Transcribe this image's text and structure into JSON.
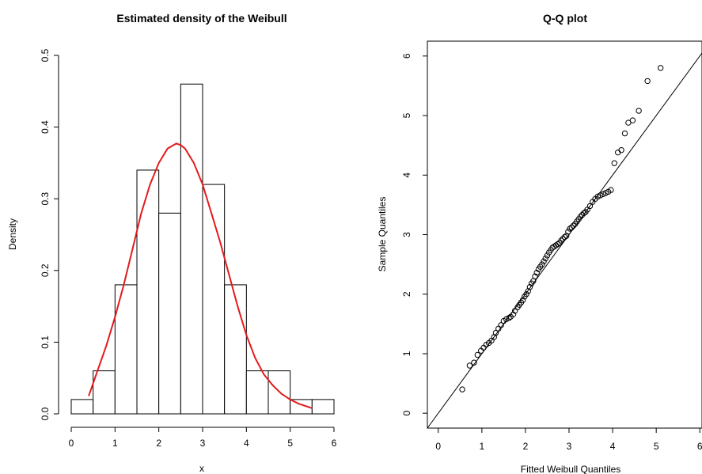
{
  "chart_data": [
    {
      "type": "bar",
      "title": "Estimated density of the Weibull",
      "xlabel": "x",
      "ylabel": "Density",
      "xlim": [
        0,
        6
      ],
      "ylim": [
        0,
        0.5
      ],
      "x_ticks": [
        "0",
        "1",
        "2",
        "3",
        "4",
        "5",
        "6"
      ],
      "y_ticks": [
        "0.0",
        "0.1",
        "0.2",
        "0.3",
        "0.4",
        "0.5"
      ],
      "bars": [
        {
          "x0": 0.0,
          "x1": 0.5,
          "density": 0.02
        },
        {
          "x0": 0.5,
          "x1": 1.0,
          "density": 0.06
        },
        {
          "x0": 1.0,
          "x1": 1.5,
          "density": 0.18
        },
        {
          "x0": 1.5,
          "x1": 2.0,
          "density": 0.34
        },
        {
          "x0": 2.0,
          "x1": 2.5,
          "density": 0.28
        },
        {
          "x0": 2.5,
          "x1": 3.0,
          "density": 0.46
        },
        {
          "x0": 3.0,
          "x1": 3.5,
          "density": 0.32
        },
        {
          "x0": 3.5,
          "x1": 4.0,
          "density": 0.18
        },
        {
          "x0": 4.0,
          "x1": 4.5,
          "density": 0.06
        },
        {
          "x0": 4.5,
          "x1": 5.0,
          "density": 0.06
        },
        {
          "x0": 5.0,
          "x1": 5.5,
          "density": 0.02
        },
        {
          "x0": 5.5,
          "x1": 6.0,
          "density": 0.02
        }
      ],
      "density_curve": {
        "color": "#e41a1c",
        "x": [
          0.4,
          0.6,
          0.8,
          1.0,
          1.2,
          1.4,
          1.6,
          1.8,
          2.0,
          2.2,
          2.4,
          2.5,
          2.6,
          2.8,
          3.0,
          3.2,
          3.4,
          3.6,
          3.8,
          4.0,
          4.2,
          4.4,
          4.6,
          4.8,
          5.0,
          5.2,
          5.5
        ],
        "y": [
          0.025,
          0.06,
          0.095,
          0.135,
          0.18,
          0.23,
          0.28,
          0.32,
          0.35,
          0.37,
          0.377,
          0.375,
          0.37,
          0.35,
          0.32,
          0.28,
          0.24,
          0.195,
          0.15,
          0.11,
          0.078,
          0.055,
          0.04,
          0.028,
          0.02,
          0.014,
          0.008
        ]
      },
      "bar_fill": "#ffffff",
      "bar_stroke": "#000000"
    },
    {
      "type": "scatter",
      "title": "Q-Q plot",
      "xlabel": "Fitted Weibull Quantiles",
      "ylabel": "Sample Quantiles",
      "xlim": [
        -0.25,
        6.05
      ],
      "ylim": [
        -0.25,
        6.25
      ],
      "x_ticks": [
        "0",
        "1",
        "2",
        "3",
        "4",
        "5",
        "6"
      ],
      "y_ticks": [
        "0",
        "1",
        "2",
        "3",
        "4",
        "5",
        "6"
      ],
      "reference_line": {
        "slope": 1,
        "intercept": 0
      },
      "points": {
        "x": [
          0.55,
          0.72,
          0.82,
          0.9,
          0.98,
          1.04,
          1.1,
          1.16,
          1.22,
          1.28,
          1.32,
          1.38,
          1.44,
          1.5,
          1.56,
          1.62,
          1.66,
          1.72,
          1.76,
          1.82,
          1.86,
          1.9,
          1.94,
          1.98,
          2.02,
          2.06,
          2.1,
          2.14,
          2.18,
          2.22,
          2.26,
          2.3,
          2.34,
          2.38,
          2.42,
          2.46,
          2.5,
          2.54,
          2.58,
          2.62,
          2.66,
          2.7,
          2.74,
          2.78,
          2.82,
          2.86,
          2.9,
          2.94,
          2.98,
          3.02,
          3.06,
          3.1,
          3.14,
          3.18,
          3.22,
          3.26,
          3.3,
          3.34,
          3.38,
          3.42,
          3.48,
          3.54,
          3.6,
          3.66,
          3.72,
          3.78,
          3.84,
          3.9,
          3.96,
          4.04,
          4.12,
          4.2,
          4.28,
          4.36,
          4.46,
          4.6,
          4.8,
          5.1
        ],
        "y": [
          0.4,
          0.8,
          0.85,
          0.98,
          1.05,
          1.1,
          1.15,
          1.18,
          1.22,
          1.28,
          1.35,
          1.42,
          1.48,
          1.55,
          1.58,
          1.6,
          1.62,
          1.66,
          1.72,
          1.78,
          1.82,
          1.86,
          1.9,
          1.96,
          2.0,
          2.05,
          2.12,
          2.18,
          2.22,
          2.3,
          2.36,
          2.42,
          2.46,
          2.5,
          2.55,
          2.6,
          2.65,
          2.7,
          2.74,
          2.78,
          2.8,
          2.82,
          2.84,
          2.86,
          2.9,
          2.93,
          2.96,
          2.98,
          3.05,
          3.1,
          3.12,
          3.15,
          3.18,
          3.22,
          3.26,
          3.3,
          3.33,
          3.36,
          3.38,
          3.42,
          3.48,
          3.55,
          3.6,
          3.64,
          3.66,
          3.68,
          3.7,
          3.72,
          3.75,
          4.2,
          4.38,
          4.42,
          4.7,
          4.88,
          4.92,
          5.08,
          5.58,
          5.8
        ]
      }
    }
  ]
}
